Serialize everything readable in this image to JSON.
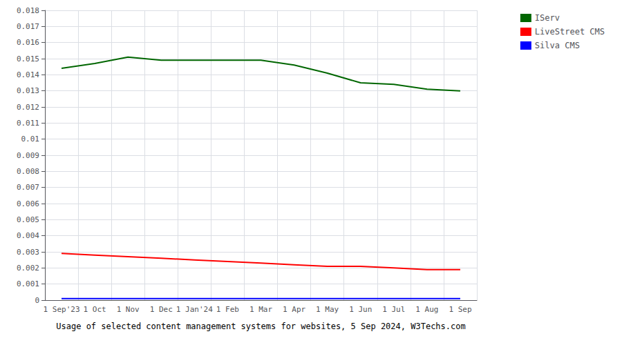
{
  "chart_data": {
    "type": "line",
    "title": "Usage of selected content management systems for websites, 5 Sep 2024, W3Techs.com",
    "categories": [
      "1 Sep'23",
      "1 Oct",
      "1 Nov",
      "1 Dec",
      "1 Jan'24",
      "1 Feb",
      "1 Mar",
      "1 Apr",
      "1 May",
      "1 Jun",
      "1 Jul",
      "1 Aug",
      "1 Sep"
    ],
    "series": [
      {
        "name": "IServ",
        "color": "#006600",
        "values": [
          0.0144,
          0.0147,
          0.0151,
          0.0149,
          0.0149,
          0.0149,
          0.0149,
          0.0146,
          0.0141,
          0.0135,
          0.0134,
          0.0131,
          0.013
        ]
      },
      {
        "name": "LiveStreet CMS",
        "color": "#ff0000",
        "values": [
          0.0029,
          0.0028,
          0.0027,
          0.0026,
          0.0025,
          0.0024,
          0.0023,
          0.0022,
          0.0021,
          0.0021,
          0.002,
          0.0019,
          0.0019
        ]
      },
      {
        "name": "Silva CMS",
        "color": "#0000ff",
        "values": [
          0.0001,
          0.0001,
          0.0001,
          0.0001,
          0.0001,
          0.0001,
          0.0001,
          0.0001,
          0.0001,
          0.0001,
          0.0001,
          0.0001,
          0.0001
        ]
      }
    ],
    "ylim": [
      0,
      0.018
    ],
    "yticks": [
      0,
      0.001,
      0.002,
      0.003,
      0.004,
      0.005,
      0.006,
      0.007,
      0.008,
      0.009,
      0.01,
      0.011,
      0.012,
      0.013,
      0.014,
      0.015,
      0.016,
      0.017,
      0.018
    ],
    "grid": true,
    "legend": "top right"
  }
}
